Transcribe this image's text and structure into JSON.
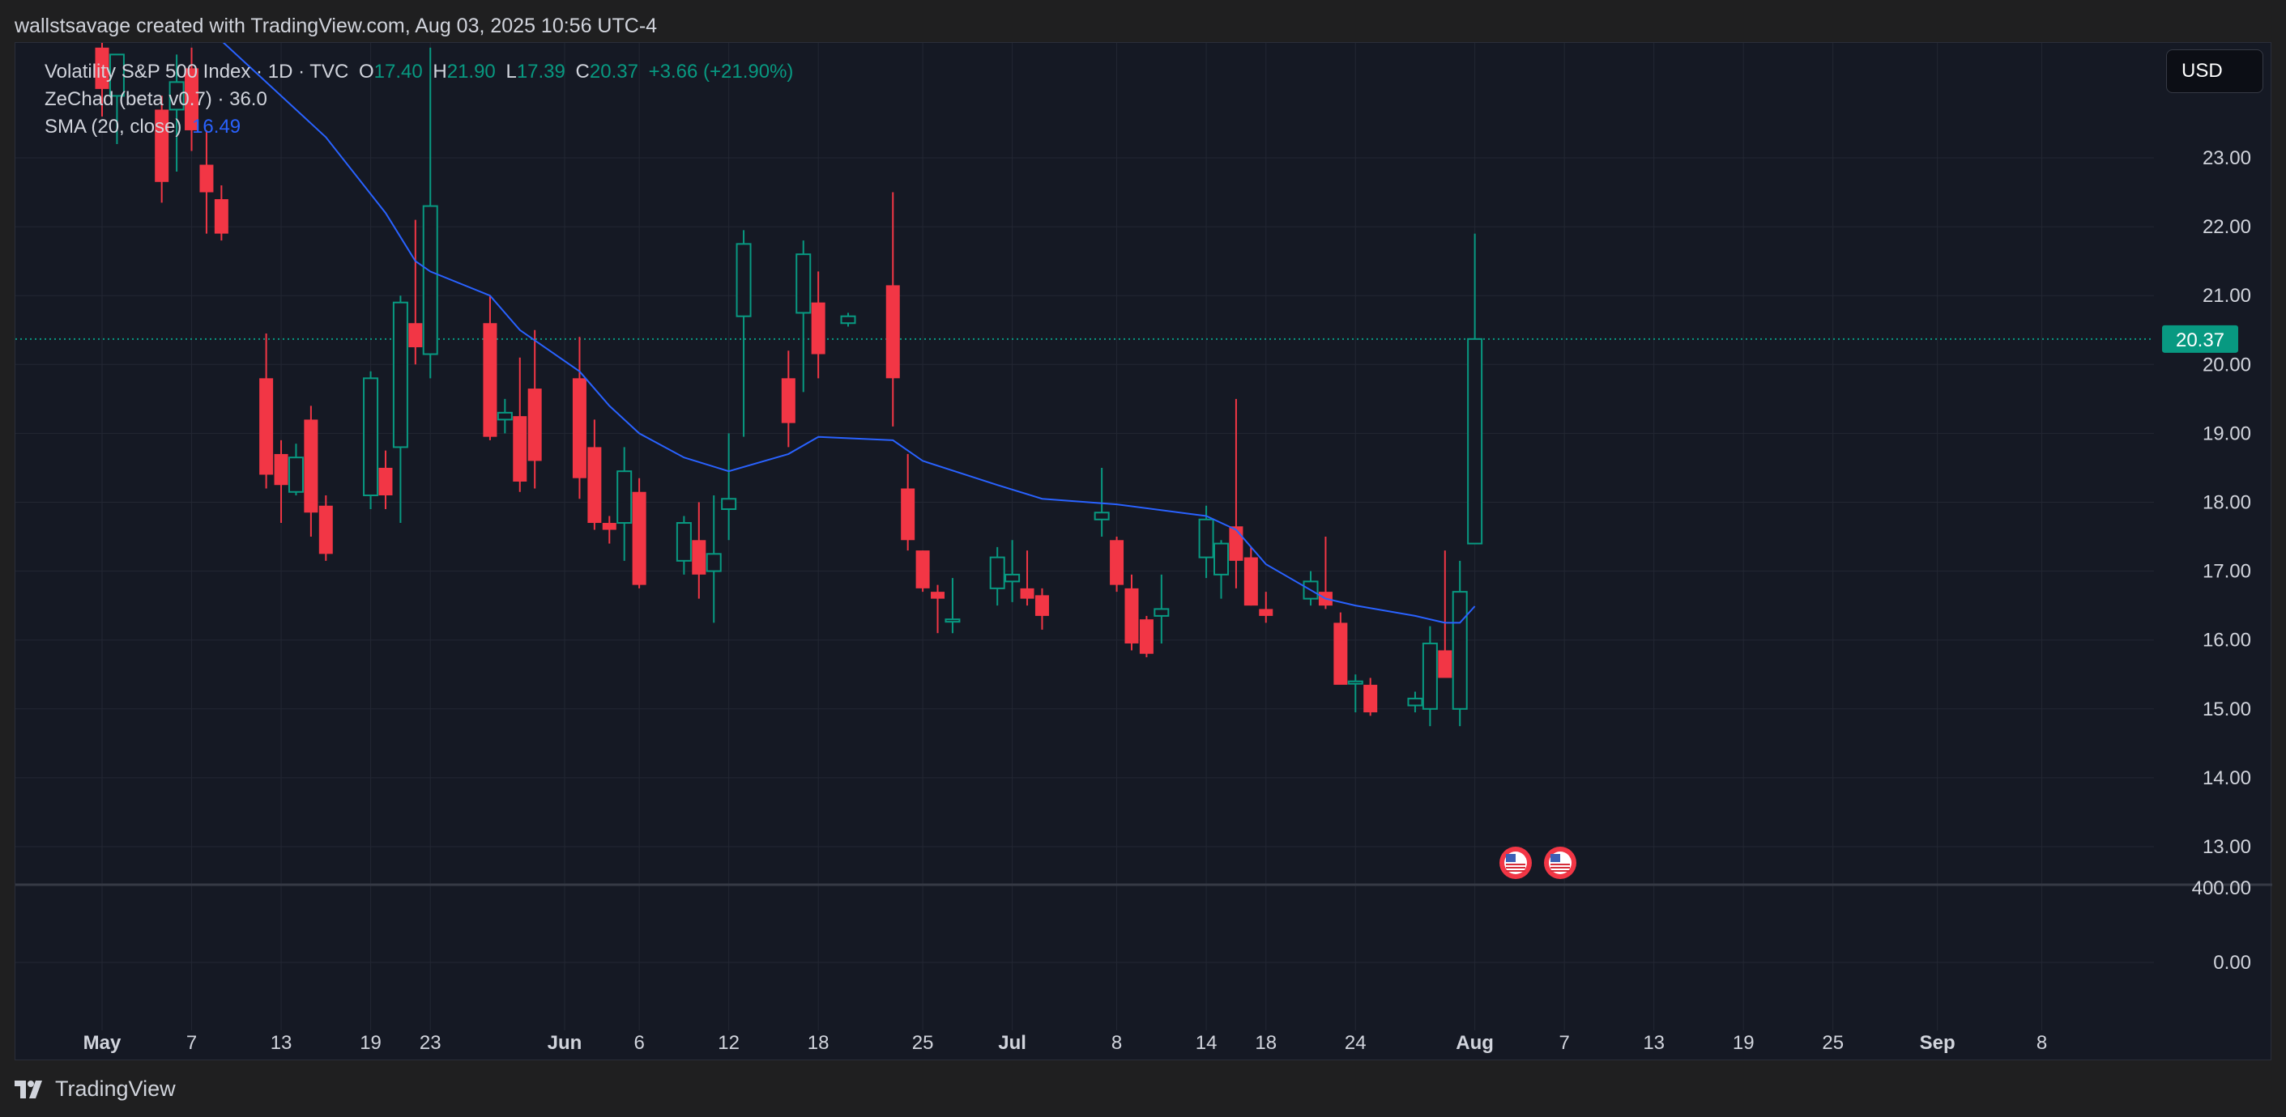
{
  "header": {
    "text": "wallstsavage created with TradingView.com, Aug 03, 2025 10:56 UTC-4"
  },
  "legend": {
    "symbol": "Volatility S&P 500 Index · 1D · TVC",
    "o_label": "O",
    "o_value": "17.40",
    "h_label": "H",
    "h_value": "21.90",
    "l_label": "L",
    "l_value": "17.39",
    "c_label": "C",
    "c_value": "20.37",
    "change": "+3.66 (+21.90%)",
    "indicator1": "ZeChad (beta v0.7) · 36.0",
    "indicator2_label": "SMA (20, close)",
    "indicator2_value": "16.49"
  },
  "currency": "USD",
  "footer": {
    "brand": "TradingView"
  },
  "colors": {
    "up": "#089981",
    "down": "#f23645",
    "sma": "#2962ff",
    "background": "#151924",
    "grid": "#232733"
  },
  "icons": [
    "tradingview-logo-icon",
    "us-flag-event-icon"
  ],
  "chart_data": {
    "type": "candlestick",
    "title": "Volatility S&P 500 Index · 1D · TVC",
    "x_ticks": [
      "May",
      "7",
      "13",
      "19",
      "23",
      "Jun",
      "6",
      "12",
      "18",
      "25",
      "Jul",
      "8",
      "14",
      "18",
      "24",
      "Aug",
      "7",
      "13",
      "19",
      "25",
      "Sep",
      "8"
    ],
    "y_ticks": [
      "23.00",
      "22.00",
      "21.00",
      "20.00",
      "19.00",
      "18.00",
      "17.00",
      "16.00",
      "15.00",
      "14.00",
      "13.00"
    ],
    "ylim": [
      12.4,
      24.3
    ],
    "last_price_label": "20.37",
    "last_price": 20.37,
    "sub_pane_ticks": [
      "400.00",
      "0.00"
    ],
    "event_markers": 2,
    "candles": [
      {
        "date": "2025-05-01",
        "o": 24.6,
        "h": 25.0,
        "l": 23.6,
        "c": 24.0
      },
      {
        "date": "2025-05-02",
        "o": 23.9,
        "h": 24.5,
        "l": 23.2,
        "c": 24.5
      },
      {
        "date": "2025-05-05",
        "o": 23.7,
        "h": 23.9,
        "l": 22.35,
        "c": 22.65
      },
      {
        "date": "2025-05-06",
        "o": 23.7,
        "h": 24.5,
        "l": 22.8,
        "c": 24.1
      },
      {
        "date": "2025-05-07",
        "o": 24.3,
        "h": 24.6,
        "l": 23.1,
        "c": 23.4
      },
      {
        "date": "2025-05-08",
        "o": 22.9,
        "h": 23.4,
        "l": 21.9,
        "c": 22.5
      },
      {
        "date": "2025-05-09",
        "o": 22.4,
        "h": 22.6,
        "l": 21.8,
        "c": 21.9
      },
      {
        "date": "2025-05-12",
        "o": 19.8,
        "h": 20.45,
        "l": 18.2,
        "c": 18.4
      },
      {
        "date": "2025-05-13",
        "o": 18.7,
        "h": 18.9,
        "l": 17.7,
        "c": 18.25
      },
      {
        "date": "2025-05-14",
        "o": 18.15,
        "h": 18.85,
        "l": 18.1,
        "c": 18.65
      },
      {
        "date": "2025-05-15",
        "o": 19.2,
        "h": 19.4,
        "l": 17.5,
        "c": 17.85
      },
      {
        "date": "2025-05-16",
        "o": 17.95,
        "h": 18.1,
        "l": 17.15,
        "c": 17.25
      },
      {
        "date": "2025-05-19",
        "o": 18.1,
        "h": 19.9,
        "l": 17.9,
        "c": 19.8
      },
      {
        "date": "2025-05-20",
        "o": 18.5,
        "h": 18.75,
        "l": 17.9,
        "c": 18.1
      },
      {
        "date": "2025-05-21",
        "o": 18.8,
        "h": 21.0,
        "l": 17.7,
        "c": 20.9
      },
      {
        "date": "2025-05-22",
        "o": 20.6,
        "h": 22.1,
        "l": 20.0,
        "c": 20.25
      },
      {
        "date": "2025-05-23",
        "o": 20.15,
        "h": 24.6,
        "l": 19.8,
        "c": 22.3
      },
      {
        "date": "2025-05-27",
        "o": 20.6,
        "h": 21.0,
        "l": 18.9,
        "c": 18.95
      },
      {
        "date": "2025-05-28",
        "o": 19.2,
        "h": 19.5,
        "l": 19.0,
        "c": 19.3
      },
      {
        "date": "2025-05-29",
        "o": 19.25,
        "h": 20.1,
        "l": 18.15,
        "c": 18.3
      },
      {
        "date": "2025-05-30",
        "o": 19.65,
        "h": 20.5,
        "l": 18.2,
        "c": 18.6
      },
      {
        "date": "2025-06-02",
        "o": 19.8,
        "h": 20.4,
        "l": 18.05,
        "c": 18.35
      },
      {
        "date": "2025-06-03",
        "o": 18.8,
        "h": 19.2,
        "l": 17.6,
        "c": 17.7
      },
      {
        "date": "2025-06-04",
        "o": 17.7,
        "h": 17.8,
        "l": 17.4,
        "c": 17.6
      },
      {
        "date": "2025-06-05",
        "o": 17.7,
        "h": 18.8,
        "l": 17.15,
        "c": 18.45
      },
      {
        "date": "2025-06-06",
        "o": 18.15,
        "h": 18.35,
        "l": 16.75,
        "c": 16.8
      },
      {
        "date": "2025-06-09",
        "o": 17.15,
        "h": 17.8,
        "l": 16.95,
        "c": 17.7
      },
      {
        "date": "2025-06-10",
        "o": 17.45,
        "h": 18.0,
        "l": 16.6,
        "c": 16.95
      },
      {
        "date": "2025-06-11",
        "o": 17.0,
        "h": 18.1,
        "l": 16.25,
        "c": 17.25
      },
      {
        "date": "2025-06-12",
        "o": 17.9,
        "h": 19.0,
        "l": 17.45,
        "c": 18.05
      },
      {
        "date": "2025-06-13",
        "o": 20.7,
        "h": 21.95,
        "l": 18.95,
        "c": 21.75
      },
      {
        "date": "2025-06-16",
        "o": 19.8,
        "h": 20.2,
        "l": 18.8,
        "c": 19.15
      },
      {
        "date": "2025-06-17",
        "o": 20.75,
        "h": 21.8,
        "l": 19.6,
        "c": 21.6
      },
      {
        "date": "2025-06-18",
        "o": 20.9,
        "h": 21.35,
        "l": 19.8,
        "c": 20.15
      },
      {
        "date": "2025-06-20",
        "o": 20.6,
        "h": 20.75,
        "l": 20.55,
        "c": 20.7
      },
      {
        "date": "2025-06-23",
        "o": 21.15,
        "h": 22.5,
        "l": 19.1,
        "c": 19.8
      },
      {
        "date": "2025-06-24",
        "o": 18.2,
        "h": 18.7,
        "l": 17.3,
        "c": 17.45
      },
      {
        "date": "2025-06-25",
        "o": 17.3,
        "h": 17.3,
        "l": 16.7,
        "c": 16.75
      },
      {
        "date": "2025-06-26",
        "o": 16.7,
        "h": 16.8,
        "l": 16.1,
        "c": 16.6
      },
      {
        "date": "2025-06-27",
        "o": 16.3,
        "h": 16.9,
        "l": 16.1,
        "c": 16.3
      },
      {
        "date": "2025-06-30",
        "o": 16.75,
        "h": 17.35,
        "l": 16.5,
        "c": 17.2
      },
      {
        "date": "2025-07-01",
        "o": 16.85,
        "h": 17.45,
        "l": 16.55,
        "c": 16.95
      },
      {
        "date": "2025-07-02",
        "o": 16.75,
        "h": 17.3,
        "l": 16.5,
        "c": 16.6
      },
      {
        "date": "2025-07-03",
        "o": 16.65,
        "h": 16.75,
        "l": 16.15,
        "c": 16.35
      },
      {
        "date": "2025-07-07",
        "o": 17.75,
        "h": 18.5,
        "l": 17.5,
        "c": 17.85
      },
      {
        "date": "2025-07-08",
        "o": 17.45,
        "h": 17.5,
        "l": 16.7,
        "c": 16.8
      },
      {
        "date": "2025-07-09",
        "o": 16.75,
        "h": 16.95,
        "l": 15.85,
        "c": 15.95
      },
      {
        "date": "2025-07-10",
        "o": 16.3,
        "h": 16.35,
        "l": 15.75,
        "c": 15.8
      },
      {
        "date": "2025-07-11",
        "o": 16.35,
        "h": 16.95,
        "l": 15.95,
        "c": 16.45
      },
      {
        "date": "2025-07-14",
        "o": 17.2,
        "h": 17.95,
        "l": 16.9,
        "c": 17.75
      },
      {
        "date": "2025-07-15",
        "o": 16.95,
        "h": 17.45,
        "l": 16.6,
        "c": 17.4
      },
      {
        "date": "2025-07-16",
        "o": 17.65,
        "h": 19.5,
        "l": 16.75,
        "c": 17.15
      },
      {
        "date": "2025-07-17",
        "o": 17.2,
        "h": 17.35,
        "l": 16.5,
        "c": 16.5
      },
      {
        "date": "2025-07-18",
        "o": 16.45,
        "h": 16.7,
        "l": 16.25,
        "c": 16.35
      },
      {
        "date": "2025-07-21",
        "o": 16.6,
        "h": 17.0,
        "l": 16.5,
        "c": 16.85
      },
      {
        "date": "2025-07-22",
        "o": 16.7,
        "h": 17.5,
        "l": 16.45,
        "c": 16.5
      },
      {
        "date": "2025-07-23",
        "o": 16.25,
        "h": 16.4,
        "l": 15.35,
        "c": 15.35
      },
      {
        "date": "2025-07-24",
        "o": 15.4,
        "h": 15.5,
        "l": 14.95,
        "c": 15.4
      },
      {
        "date": "2025-07-25",
        "o": 15.35,
        "h": 15.45,
        "l": 14.9,
        "c": 14.95
      },
      {
        "date": "2025-07-28",
        "o": 15.05,
        "h": 15.25,
        "l": 14.95,
        "c": 15.15
      },
      {
        "date": "2025-07-29",
        "o": 15.0,
        "h": 16.2,
        "l": 14.75,
        "c": 15.95
      },
      {
        "date": "2025-07-30",
        "o": 15.85,
        "h": 17.3,
        "l": 15.45,
        "c": 15.45
      },
      {
        "date": "2025-07-31",
        "o": 15.0,
        "h": 17.15,
        "l": 14.75,
        "c": 16.7
      },
      {
        "date": "2025-08-01",
        "o": 17.4,
        "h": 21.9,
        "l": 17.39,
        "c": 20.37
      }
    ],
    "sma_series": {
      "name": "SMA (20, close)",
      "points": [
        {
          "date": "2025-05-08",
          "v": 24.9
        },
        {
          "date": "2025-05-16",
          "v": 23.3
        },
        {
          "date": "2025-05-20",
          "v": 22.2
        },
        {
          "date": "2025-05-22",
          "v": 21.5
        },
        {
          "date": "2025-05-23",
          "v": 21.35
        },
        {
          "date": "2025-05-27",
          "v": 21.0
        },
        {
          "date": "2025-05-29",
          "v": 20.5
        },
        {
          "date": "2025-06-02",
          "v": 19.9
        },
        {
          "date": "2025-06-04",
          "v": 19.4
        },
        {
          "date": "2025-06-06",
          "v": 19.0
        },
        {
          "date": "2025-06-09",
          "v": 18.65
        },
        {
          "date": "2025-06-12",
          "v": 18.45
        },
        {
          "date": "2025-06-16",
          "v": 18.7
        },
        {
          "date": "2025-06-18",
          "v": 18.95
        },
        {
          "date": "2025-06-23",
          "v": 18.9
        },
        {
          "date": "2025-06-25",
          "v": 18.6
        },
        {
          "date": "2025-06-30",
          "v": 18.25
        },
        {
          "date": "2025-07-03",
          "v": 18.05
        },
        {
          "date": "2025-07-08",
          "v": 17.97
        },
        {
          "date": "2025-07-14",
          "v": 17.8
        },
        {
          "date": "2025-07-16",
          "v": 17.6
        },
        {
          "date": "2025-07-18",
          "v": 17.1
        },
        {
          "date": "2025-07-22",
          "v": 16.6
        },
        {
          "date": "2025-07-24",
          "v": 16.5
        },
        {
          "date": "2025-07-28",
          "v": 16.35
        },
        {
          "date": "2025-07-30",
          "v": 16.25
        },
        {
          "date": "2025-07-31",
          "v": 16.25
        },
        {
          "date": "2025-08-01",
          "v": 16.49
        }
      ]
    }
  }
}
